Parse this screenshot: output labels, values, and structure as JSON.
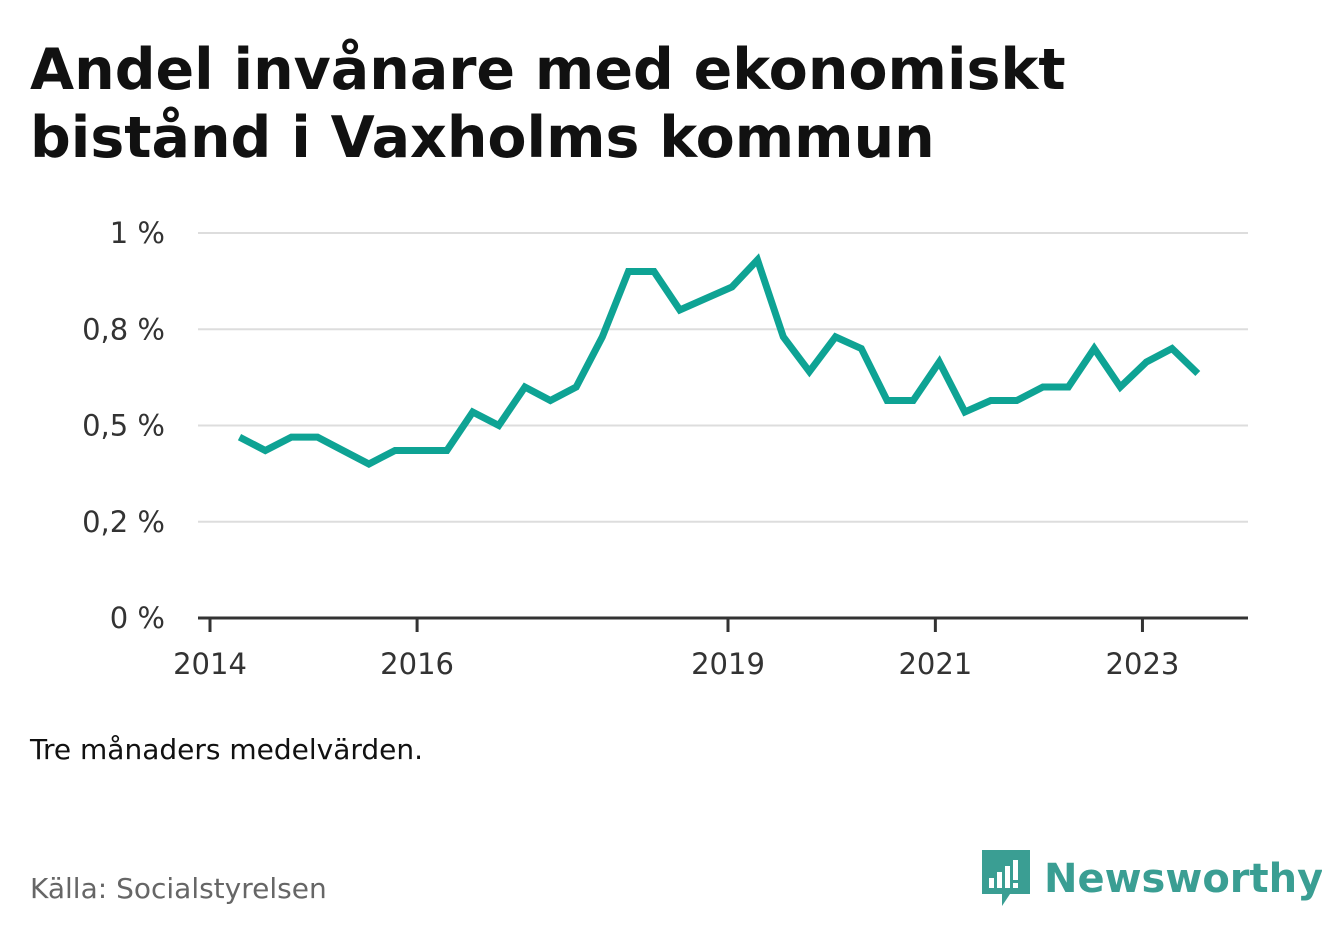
{
  "title": "Andel invånare med ekonomiskt bistånd i Vaxholms kommun",
  "note": "Tre månaders medelvärden.",
  "source": "Källa: Socialstyrelsen",
  "brand": {
    "name": "Newsworthy",
    "icon": "newsworthy-logo-icon",
    "color": "#3a9e93"
  },
  "chart_data": {
    "type": "line",
    "title": "Andel invånare med ekonomiskt bistånd i Vaxholms kommun",
    "xlabel": "",
    "ylabel": "",
    "ylim": [
      0,
      1.0
    ],
    "xlim": [
      "2014-01-01",
      "2024-01-01"
    ],
    "yticks": [
      {
        "value": 0,
        "label": "0 %"
      },
      {
        "value": 0.25,
        "label": "0,2 %"
      },
      {
        "value": 0.5,
        "label": "0,5 %"
      },
      {
        "value": 0.75,
        "label": "0,8 %"
      },
      {
        "value": 1.0,
        "label": "1 %"
      }
    ],
    "xticks": [
      {
        "value": "2014-01-01",
        "label": "2014"
      },
      {
        "value": "2016-01-01",
        "label": "2016"
      },
      {
        "value": "2019-01-01",
        "label": "2019"
      },
      {
        "value": "2021-01-01",
        "label": "2021"
      },
      {
        "value": "2023-01-01",
        "label": "2023"
      }
    ],
    "grid": true,
    "color": "#0ea394",
    "series": [
      {
        "name": "",
        "x": [
          "2014-04-15",
          "2014-07-15",
          "2014-10-15",
          "2015-01-15",
          "2015-04-15",
          "2015-07-15",
          "2015-10-15",
          "2016-01-15",
          "2016-04-15",
          "2016-07-15",
          "2016-10-15",
          "2017-01-15",
          "2017-04-15",
          "2017-07-15",
          "2017-10-15",
          "2018-01-15",
          "2018-04-15",
          "2018-07-15",
          "2018-10-15",
          "2019-01-15",
          "2019-04-15",
          "2019-07-15",
          "2019-10-15",
          "2020-01-15",
          "2020-04-15",
          "2020-07-15",
          "2020-10-15",
          "2021-01-15",
          "2021-04-15",
          "2021-07-15",
          "2021-10-15",
          "2022-01-15",
          "2022-04-15",
          "2022-07-15",
          "2022-10-15",
          "2023-01-15",
          "2023-04-15",
          "2023-07-15"
        ],
        "values": [
          0.47,
          0.435,
          0.47,
          0.47,
          0.435,
          0.4,
          0.435,
          0.435,
          0.435,
          0.535,
          0.5,
          0.6,
          0.565,
          0.6,
          0.73,
          0.9,
          0.9,
          0.8,
          0.83,
          0.86,
          0.93,
          0.73,
          0.64,
          0.73,
          0.7,
          0.565,
          0.565,
          0.665,
          0.535,
          0.565,
          0.565,
          0.6,
          0.6,
          0.7,
          0.6,
          0.665,
          0.7,
          0.635
        ]
      }
    ]
  }
}
